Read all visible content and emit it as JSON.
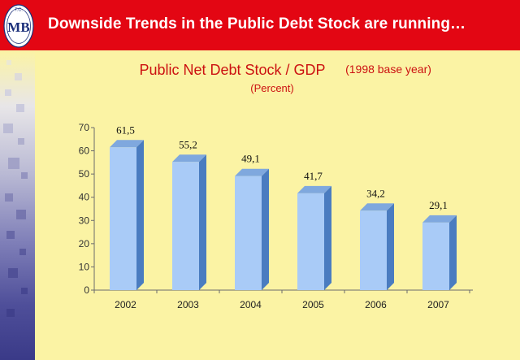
{
  "header": {
    "title": "Downside Trends in the Public Debt Stock are running…",
    "logo_text": "MB",
    "logo_top_text": "T.C."
  },
  "colors": {
    "header_bg": "#e30613",
    "page_bg": "#fbf3a4",
    "bar_front": "#a9cbf7",
    "bar_side": "#4a7cc0",
    "bar_top": "#7fa8de",
    "title_red": "#cc1111"
  },
  "chart_data": {
    "type": "bar",
    "title": "Public Net Debt Stock / GDP",
    "title_suffix": "(1998 base year)",
    "subtitle": "(Percent)",
    "categories": [
      "2002",
      "2003",
      "2004",
      "2005",
      "2006",
      "2007"
    ],
    "values": [
      61.5,
      55.2,
      49.1,
      41.7,
      34.2,
      29.1
    ],
    "value_labels": [
      "61,5",
      "55,2",
      "49,1",
      "41,7",
      "34,2",
      "29,1"
    ],
    "ylim": [
      0,
      70
    ],
    "yticks": [
      0,
      10,
      20,
      30,
      40,
      50,
      60,
      70
    ],
    "xlabel": "",
    "ylabel": "",
    "grid": false,
    "legend": "none",
    "bar_style": "3d"
  }
}
